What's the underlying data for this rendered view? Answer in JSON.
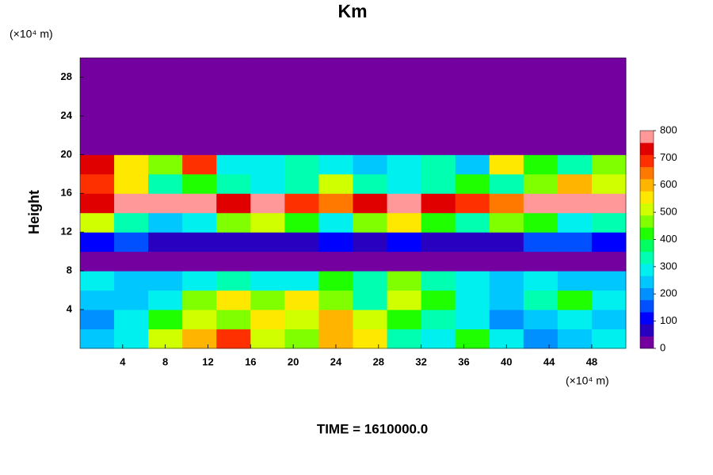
{
  "chart_data": {
    "type": "heatmap",
    "title": "Km",
    "y_label": "Height",
    "y_unit": "(×10⁴ m)",
    "x_unit": "(×10⁴ m)",
    "footer": "TIME = 1610000.0",
    "xlim": [
      0,
      51.2
    ],
    "ylim": [
      0,
      30
    ],
    "xticks": [
      4,
      8,
      12,
      16,
      20,
      24,
      28,
      32,
      36,
      40,
      44,
      48
    ],
    "yticks": [
      4,
      8,
      12,
      16,
      20,
      24,
      28
    ],
    "x_bins": [
      0,
      3.2,
      6.4,
      9.6,
      12.8,
      16,
      19.2,
      22.4,
      25.6,
      28.8,
      32,
      35.2,
      38.4,
      41.6,
      44.8,
      48,
      51.2
    ],
    "y_bins": [
      0,
      2,
      4,
      6,
      8,
      10,
      12,
      14,
      16,
      18,
      20,
      22,
      24,
      26,
      28,
      30
    ],
    "z": [
      [
        250,
        300,
        500,
        600,
        700,
        500,
        450,
        600,
        550,
        350,
        300,
        400,
        300,
        200,
        250,
        300
      ],
      [
        200,
        300,
        400,
        500,
        450,
        550,
        500,
        600,
        500,
        400,
        350,
        300,
        200,
        250,
        300,
        250
      ],
      [
        250,
        250,
        300,
        450,
        550,
        450,
        550,
        450,
        350,
        500,
        400,
        300,
        250,
        350,
        400,
        300
      ],
      [
        300,
        250,
        250,
        300,
        350,
        300,
        300,
        400,
        350,
        450,
        350,
        300,
        250,
        300,
        250,
        250
      ],
      [
        0,
        0,
        0,
        0,
        0,
        0,
        0,
        0,
        0,
        0,
        0,
        0,
        0,
        0,
        0,
        0
      ],
      [
        100,
        150,
        50,
        50,
        50,
        50,
        50,
        100,
        50,
        100,
        50,
        50,
        50,
        150,
        150,
        100
      ],
      [
        500,
        350,
        250,
        300,
        450,
        500,
        400,
        300,
        450,
        550,
        400,
        350,
        450,
        400,
        300,
        350
      ],
      [
        750,
        800,
        800,
        800,
        750,
        800,
        700,
        650,
        750,
        800,
        750,
        700,
        650,
        800,
        800,
        800
      ],
      [
        700,
        550,
        350,
        400,
        350,
        300,
        350,
        500,
        350,
        300,
        350,
        400,
        350,
        450,
        600,
        500
      ],
      [
        750,
        550,
        450,
        700,
        300,
        300,
        350,
        300,
        250,
        300,
        350,
        250,
        550,
        400,
        350,
        450
      ],
      [
        0,
        0,
        0,
        0,
        0,
        0,
        0,
        0,
        0,
        0,
        0,
        0,
        0,
        0,
        0,
        0
      ],
      [
        0,
        0,
        0,
        0,
        0,
        0,
        0,
        0,
        0,
        0,
        0,
        0,
        0,
        0,
        0,
        0
      ],
      [
        0,
        0,
        0,
        0,
        0,
        0,
        0,
        0,
        0,
        0,
        0,
        0,
        0,
        0,
        0,
        0
      ],
      [
        0,
        0,
        0,
        0,
        0,
        0,
        0,
        0,
        0,
        0,
        0,
        0,
        0,
        0,
        0,
        0
      ],
      [
        0,
        0,
        0,
        0,
        0,
        0,
        0,
        0,
        0,
        0,
        0,
        0,
        0,
        0,
        0,
        0
      ]
    ],
    "zlim": [
      0,
      800
    ],
    "zticks": [
      0,
      100,
      200,
      300,
      400,
      500,
      600,
      700,
      800
    ],
    "colors": [
      "#7400a0",
      "#2a00c0",
      "#0000ff",
      "#0050ff",
      "#0090ff",
      "#00c8ff",
      "#00f0f0",
      "#00ffb0",
      "#00ff60",
      "#20ff00",
      "#80ff00",
      "#d0ff00",
      "#ffe800",
      "#ffb400",
      "#ff7800",
      "#ff3000",
      "#e00000",
      "#ff9898"
    ]
  }
}
